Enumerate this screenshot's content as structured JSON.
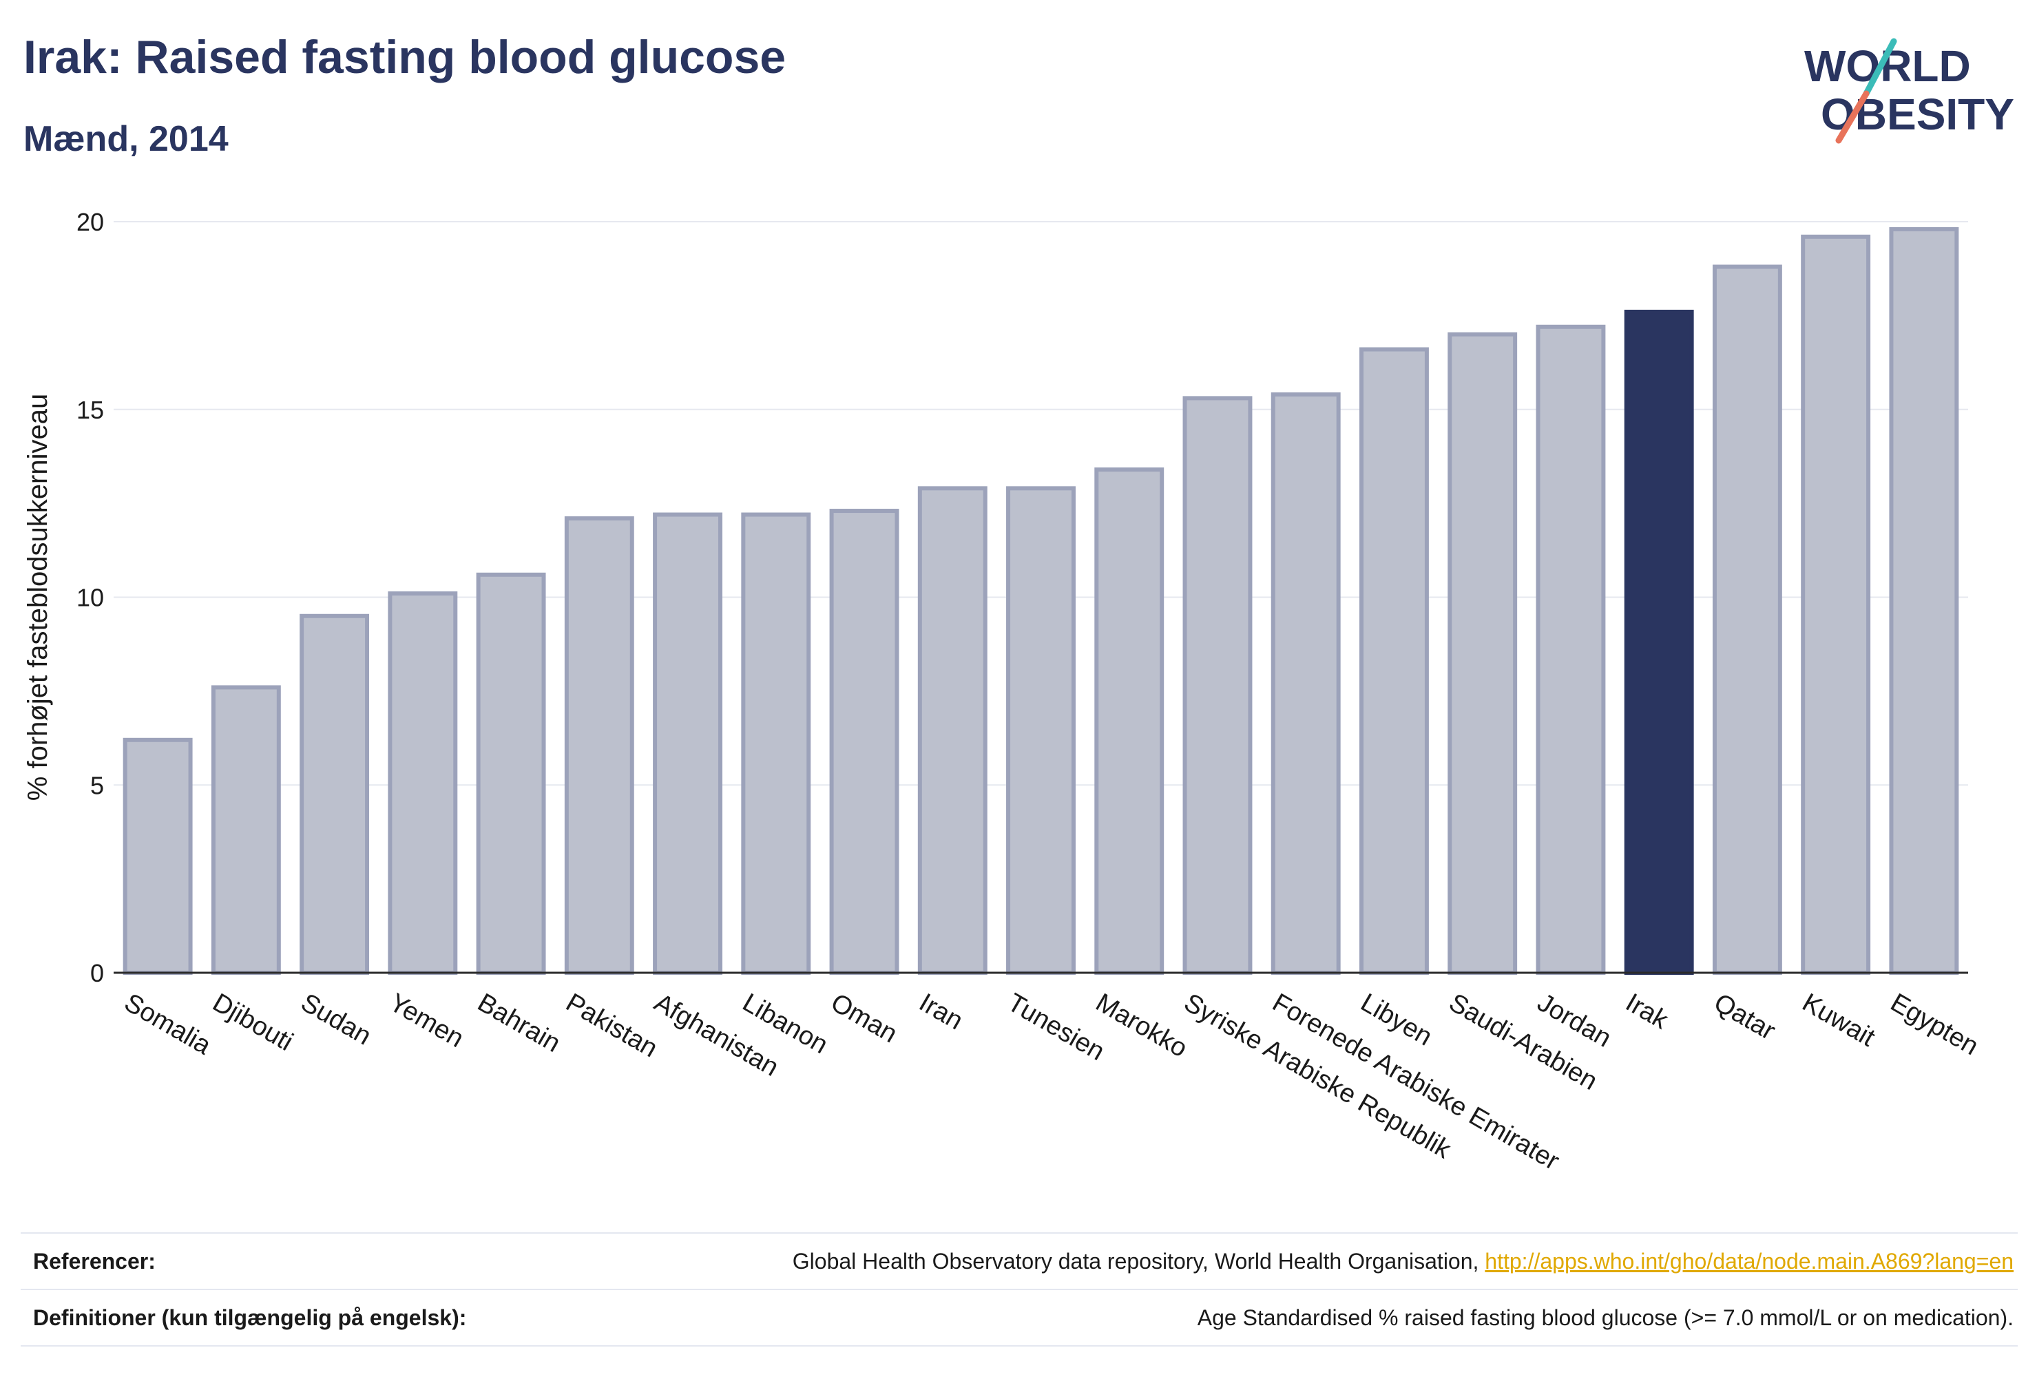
{
  "header": {
    "title": "Irak: Raised fasting blood glucose",
    "subtitle": "Mænd, 2014"
  },
  "logo": {
    "line1": "WORLD",
    "line2": "OBESITY",
    "text_color": "#2a3560",
    "slash_teal": "#3bbcb8",
    "slash_coral": "#e8735a"
  },
  "chart_data": {
    "type": "bar",
    "ylabel": "% forhøjet fasteblodsukkerniveau",
    "ylim": [
      0,
      20
    ],
    "yticks": [
      0,
      5,
      10,
      15,
      20
    ],
    "grid": true,
    "highlight": "Irak",
    "bar_color": "#bcc0cd",
    "bar_border": "#9ca2ba",
    "highlight_color": "#2a3560",
    "categories": [
      "Somalia",
      "Djibouti",
      "Sudan",
      "Yemen",
      "Bahrain",
      "Pakistan",
      "Afghanistan",
      "Libanon",
      "Oman",
      "Iran",
      "Tunesien",
      "Marokko",
      "Syriske Arabiske Republik",
      "Forenede Arabiske Emirater",
      "Libyen",
      "Saudi-Arabien",
      "Jordan",
      "Irak",
      "Qatar",
      "Kuwait",
      "Egypten"
    ],
    "values": [
      6.2,
      7.6,
      9.5,
      10.1,
      10.6,
      12.1,
      12.2,
      12.2,
      12.3,
      12.9,
      12.9,
      13.4,
      15.3,
      15.4,
      16.6,
      17.0,
      17.2,
      17.6,
      18.8,
      19.6,
      19.8
    ]
  },
  "footer": {
    "references_label": "Referencer:",
    "references_text": "Global Health Observatory data repository, World Health Organisation, ",
    "references_link": "http://apps.who.int/gho/data/node.main.A869?lang=en",
    "definitions_label": "Definitioner (kun tilgængelig på engelsk):",
    "definitions_text": "Age Standardised % raised fasting blood glucose (>= 7.0 mmol/L or on medication)."
  }
}
